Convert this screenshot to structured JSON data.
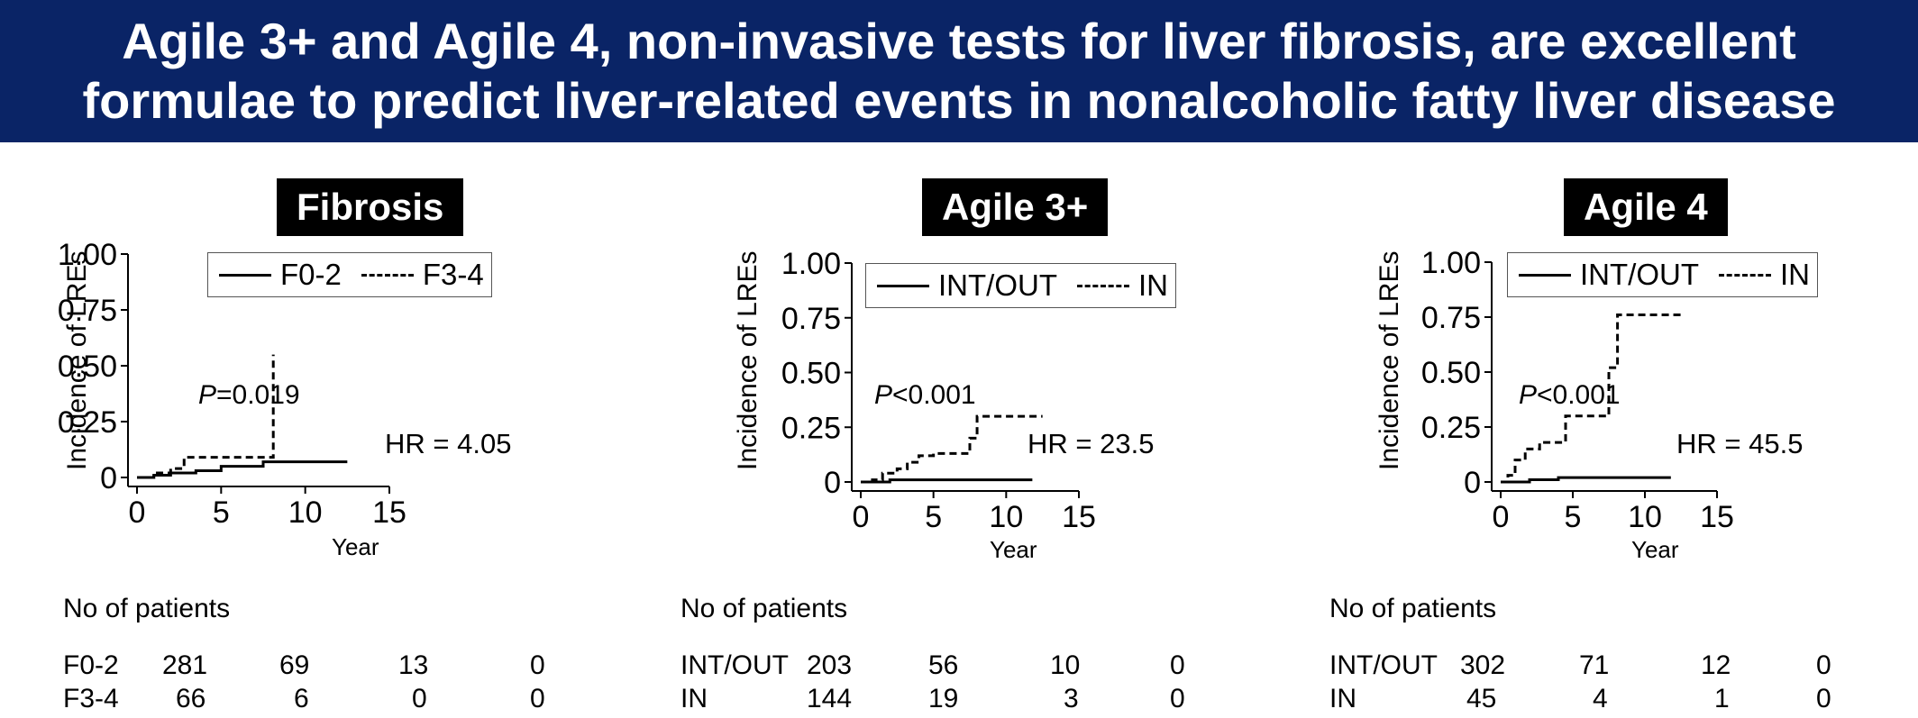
{
  "header": {
    "line1": "Agile 3+ and Agile 4, non-invasive tests for liver fibrosis, are excellent",
    "line2": "formulae to predict liver-related events in nonalcoholic fatty liver disease"
  },
  "panels": [
    {
      "title": "Fibrosis",
      "ylabel": "Incidence of LREs",
      "xlabel": "Year",
      "legend": [
        "F0-2",
        "F3-4"
      ],
      "p_prefix": "P",
      "p_rest": "=0.019",
      "hr": "HR = 4.05",
      "risk_header": "No of patients",
      "risk": [
        {
          "label": "F0-2",
          "counts": [
            "281",
            "69",
            "13",
            "0"
          ]
        },
        {
          "label": "F3-4",
          "counts": [
            "66",
            "6",
            "0",
            "0"
          ]
        }
      ]
    },
    {
      "title": "Agile 3+",
      "ylabel": "Incidence of LREs",
      "xlabel": "Year",
      "legend": [
        "INT/OUT",
        "IN"
      ],
      "p_prefix": "P",
      "p_rest": "<0.001",
      "hr": "HR = 23.5",
      "risk_header": "No of patients",
      "risk": [
        {
          "label": "INT/OUT",
          "counts": [
            "203",
            "56",
            "10",
            "0"
          ]
        },
        {
          "label": "IN",
          "counts": [
            "144",
            "19",
            "3",
            "0"
          ]
        }
      ]
    },
    {
      "title": "Agile 4",
      "ylabel": "Incidence of LREs",
      "xlabel": "Year",
      "legend": [
        "INT/OUT",
        "IN"
      ],
      "p_prefix": "P",
      "p_rest": "<0.001",
      "hr": "HR = 45.5",
      "risk_header": "No of patients",
      "risk": [
        {
          "label": "INT/OUT",
          "counts": [
            "302",
            "71",
            "12",
            "0"
          ]
        },
        {
          "label": "IN",
          "counts": [
            "45",
            "4",
            "1",
            "0"
          ]
        }
      ]
    }
  ],
  "chart_data": [
    {
      "type": "line",
      "title": "Fibrosis",
      "xlabel": "Year",
      "ylabel": "Incidence of LREs",
      "xlim": [
        0,
        15
      ],
      "ylim": [
        0,
        1
      ],
      "xticks": [
        "0",
        "5",
        "10",
        "15"
      ],
      "yticks": [
        "0",
        "0.25",
        "0.50",
        "0.75",
        "1.00"
      ],
      "legend_position": "top-right",
      "series": [
        {
          "name": "F0-2",
          "style": "solid",
          "x": [
            0,
            1,
            2,
            3.5,
            5,
            7.5,
            12.5
          ],
          "y": [
            0,
            0.01,
            0.02,
            0.03,
            0.05,
            0.07,
            0.07
          ]
        },
        {
          "name": "F3-4",
          "style": "dashed",
          "x": [
            0,
            1,
            2,
            2.8,
            8.1,
            8.1
          ],
          "y": [
            0,
            0.02,
            0.04,
            0.09,
            0.09,
            0.55
          ]
        }
      ]
    },
    {
      "type": "line",
      "title": "Agile 3+",
      "xlabel": "Year",
      "ylabel": "Incidence of LREs",
      "xlim": [
        0,
        15
      ],
      "ylim": [
        0,
        1
      ],
      "xticks": [
        "0",
        "5",
        "10",
        "15"
      ],
      "yticks": [
        "0",
        "0.25",
        "0.50",
        "0.75",
        "1.00"
      ],
      "legend_position": "top-right",
      "series": [
        {
          "name": "INT/OUT",
          "style": "solid",
          "x": [
            0,
            2,
            11.8
          ],
          "y": [
            0,
            0.01,
            0.01
          ]
        },
        {
          "name": "IN",
          "style": "dashed",
          "x": [
            0,
            0.8,
            1.5,
            2.5,
            3.2,
            4,
            5,
            7.5,
            8,
            12.5
          ],
          "y": [
            0,
            0.01,
            0.04,
            0.06,
            0.09,
            0.12,
            0.13,
            0.2,
            0.3,
            0.3
          ]
        }
      ]
    },
    {
      "type": "line",
      "title": "Agile 4",
      "xlabel": "Year",
      "ylabel": "Incidence of LREs",
      "xlim": [
        0,
        15
      ],
      "ylim": [
        0,
        1
      ],
      "xticks": [
        "0",
        "5",
        "10",
        "15"
      ],
      "yticks": [
        "0",
        "0.25",
        "0.50",
        "0.75",
        "1.00"
      ],
      "legend_position": "top-right",
      "series": [
        {
          "name": "INT/OUT",
          "style": "solid",
          "x": [
            0,
            2,
            4,
            11.8
          ],
          "y": [
            0,
            0.01,
            0.02,
            0.02
          ]
        },
        {
          "name": "IN",
          "style": "dashed",
          "x": [
            0,
            0.5,
            1,
            1.7,
            2.7,
            4.5,
            7.5,
            8.1,
            12.5
          ],
          "y": [
            0,
            0.03,
            0.1,
            0.15,
            0.18,
            0.3,
            0.52,
            0.76,
            0.76
          ]
        }
      ]
    }
  ]
}
